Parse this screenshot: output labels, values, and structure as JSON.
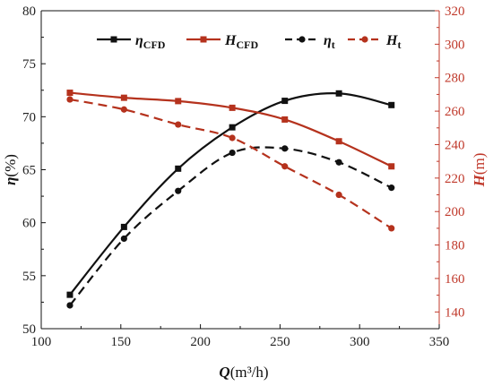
{
  "colors": {
    "black": "#111111",
    "red": "#b5321d",
    "red_axis": "#c0392b"
  },
  "chart_data": {
    "type": "line",
    "x_axis": {
      "label_main": "Q",
      "label_unit": "(m³/h)",
      "min": 100,
      "max": 350,
      "ticks": [
        100,
        150,
        200,
        250,
        300,
        350
      ]
    },
    "y_left": {
      "label_main": "η",
      "label_unit": "(%)",
      "min": 50,
      "max": 80,
      "ticks": [
        50,
        55,
        60,
        65,
        70,
        75,
        80
      ]
    },
    "y_right": {
      "label_main": "H",
      "label_unit": "(m)",
      "min": 130,
      "max": 320,
      "ticks": [
        140,
        160,
        180,
        200,
        220,
        240,
        260,
        280,
        300,
        320
      ],
      "color": "#c0392b"
    },
    "series": [
      {
        "name": "η",
        "sub": "CFD",
        "axis": "left",
        "color": "#111111",
        "dashed": false,
        "marker": "square",
        "x": [
          118,
          152,
          186,
          220,
          253,
          287,
          320
        ],
        "y": [
          53.2,
          59.6,
          65.1,
          69.0,
          71.5,
          72.2,
          71.1
        ]
      },
      {
        "name": "H",
        "sub": "CFD",
        "axis": "right",
        "color": "#b5321d",
        "dashed": false,
        "marker": "square",
        "x": [
          118,
          152,
          186,
          220,
          253,
          287,
          320
        ],
        "y": [
          271,
          268,
          266,
          262,
          255,
          242,
          227
        ]
      },
      {
        "name": "η",
        "sub": "t",
        "axis": "left",
        "color": "#111111",
        "dashed": true,
        "marker": "circle",
        "x": [
          118,
          152,
          186,
          220,
          253,
          287,
          320
        ],
        "y": [
          52.2,
          58.5,
          63.0,
          66.6,
          67.0,
          65.7,
          63.3
        ]
      },
      {
        "name": "H",
        "sub": "t",
        "axis": "right",
        "color": "#b5321d",
        "dashed": true,
        "marker": "circle",
        "x": [
          118,
          152,
          186,
          220,
          253,
          287,
          320
        ],
        "y": [
          267,
          261,
          252,
          244,
          227,
          210,
          190
        ]
      }
    ],
    "legend_position": "top"
  }
}
